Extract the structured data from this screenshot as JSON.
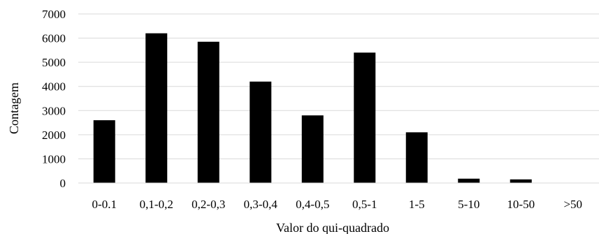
{
  "chart_data": {
    "type": "bar",
    "xlabel": "Valor do qui-quadrado",
    "ylabel": "Contagem",
    "categories": [
      "0-0.1",
      "0,1-0,2",
      "0,2-0,3",
      "0,3-0,4",
      "0,4-0,5",
      "0,5-1",
      "1-5",
      "5-10",
      "10-50",
      ">50"
    ],
    "values": [
      2600,
      6200,
      5850,
      4200,
      2800,
      5400,
      2100,
      180,
      150,
      0
    ],
    "ylim": [
      0,
      7000
    ],
    "yticks": [
      0,
      1000,
      2000,
      3000,
      4000,
      5000,
      6000,
      7000
    ],
    "grid": true,
    "legend": "none",
    "bar_color": "#000000",
    "grid_color": "#d9d9d9"
  }
}
